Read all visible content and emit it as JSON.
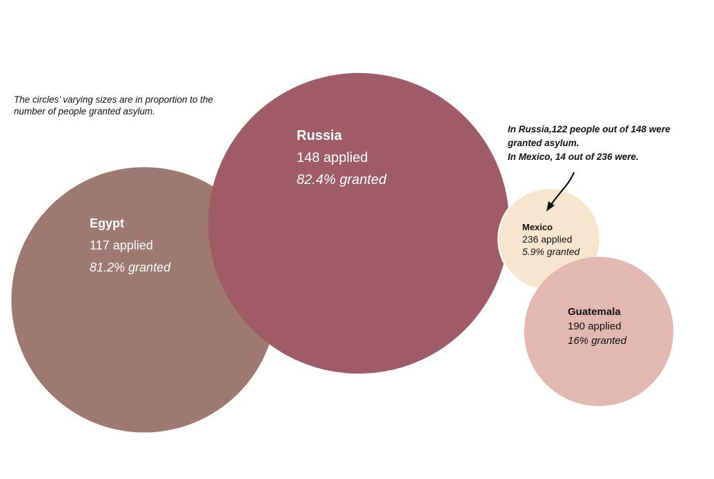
{
  "chart_data": {
    "type": "bubble",
    "size_encodes": "granted",
    "note": "The circles’ varying sizes are in proportion to the number of people granted asylum.",
    "annotation": {
      "lines": [
        "In Russia,122 people out of 148 were",
        "granted asylum.",
        "In Mexico, 14 out of 236 were."
      ],
      "points_to": "Mexico"
    },
    "series": [
      {
        "name": "Egypt",
        "applied": 117,
        "granted_pct": 81.2,
        "granted": 95,
        "color": "#9e7972",
        "label_color": "#ffffff",
        "applied_label": "117 applied",
        "granted_label": "81.2% granted"
      },
      {
        "name": "Russia",
        "applied": 148,
        "granted_pct": 82.4,
        "granted": 122,
        "color": "#9f5b66",
        "label_color": "#ffffff",
        "applied_label": "148 applied",
        "granted_label": "82.4% granted"
      },
      {
        "name": "Mexico",
        "applied": 236,
        "granted_pct": 5.9,
        "granted": 14,
        "color": "#f6e5cf",
        "label_color": "#111111",
        "applied_label": "236 applied",
        "granted_label": "5.9% granted"
      },
      {
        "name": "Guatemala",
        "applied": 190,
        "granted_pct": 16,
        "granted": 30,
        "color": "#e3b8b1",
        "label_color": "#111111",
        "applied_label": "190 applied",
        "granted_label": "16% granted"
      }
    ]
  }
}
